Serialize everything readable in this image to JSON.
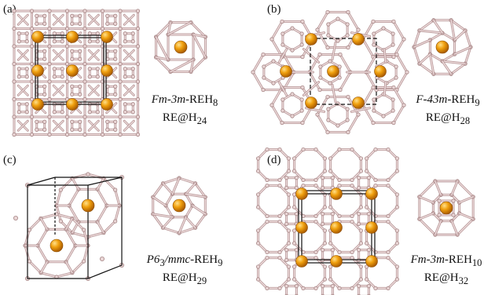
{
  "colors": {
    "metal": "#e08a00",
    "metal_light": "#ffd36a",
    "hydrogen_bond": "#b9999a",
    "cell": "#111111"
  },
  "panels": [
    {
      "label": "(a)",
      "formula_italic": "Fm-3m",
      "formula_rest": "-REH",
      "formula_sub": "8",
      "cage": "RE@H",
      "cage_sub": "24"
    },
    {
      "label": "(b)",
      "formula_italic": "F-43m",
      "formula_rest": "-REH",
      "formula_sub": "9",
      "cage": "RE@H",
      "cage_sub": "28"
    },
    {
      "label": "(c)",
      "formula_italic": "P6",
      "formula_sub_a": "3",
      "formula_italic_b": "/mmc",
      "formula_rest": "-REH",
      "formula_sub": "9",
      "cage": "RE@H",
      "cage_sub": "29"
    },
    {
      "label": "(d)",
      "formula_italic": "Fm-3m",
      "formula_rest": "-REH",
      "formula_sub": "10",
      "cage": "RE@H",
      "cage_sub": "32"
    }
  ]
}
